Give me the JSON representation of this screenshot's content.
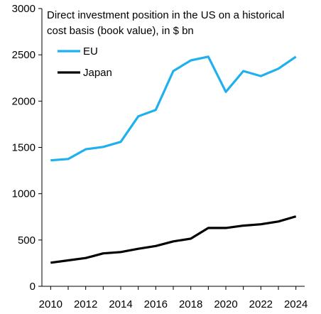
{
  "chart_data": {
    "type": "line",
    "title": "Direct investment position in the US on a historical cost basis (book value), in $ bn",
    "title_lines": [
      "Direct investment position in the US on a historical",
      "cost basis (book value), in $ bn"
    ],
    "xlabel": "",
    "ylabel": "",
    "x": [
      2010,
      2011,
      2012,
      2013,
      2014,
      2015,
      2016,
      2017,
      2018,
      2019,
      2020,
      2021,
      2022,
      2023,
      2024
    ],
    "xlim": [
      2009.5,
      2024.5
    ],
    "ylim": [
      0,
      3000
    ],
    "x_ticks": [
      "2010",
      "2012",
      "2014",
      "2016",
      "2018",
      "2020",
      "2022",
      "2024"
    ],
    "y_ticks": [
      "0",
      "500",
      "1000",
      "1500",
      "2000",
      "2500",
      "3000"
    ],
    "grid": false,
    "legend_position": "top-left",
    "series": [
      {
        "name": "EU",
        "color": "#1fb0ee",
        "values": [
          1360,
          1375,
          1480,
          1505,
          1560,
          1835,
          1905,
          2325,
          2440,
          2480,
          2100,
          2325,
          2270,
          2350,
          2480
        ]
      },
      {
        "name": "Japan",
        "color": "#000000",
        "values": [
          255,
          280,
          305,
          355,
          370,
          405,
          435,
          485,
          515,
          630,
          630,
          655,
          670,
          700,
          755
        ]
      }
    ]
  }
}
